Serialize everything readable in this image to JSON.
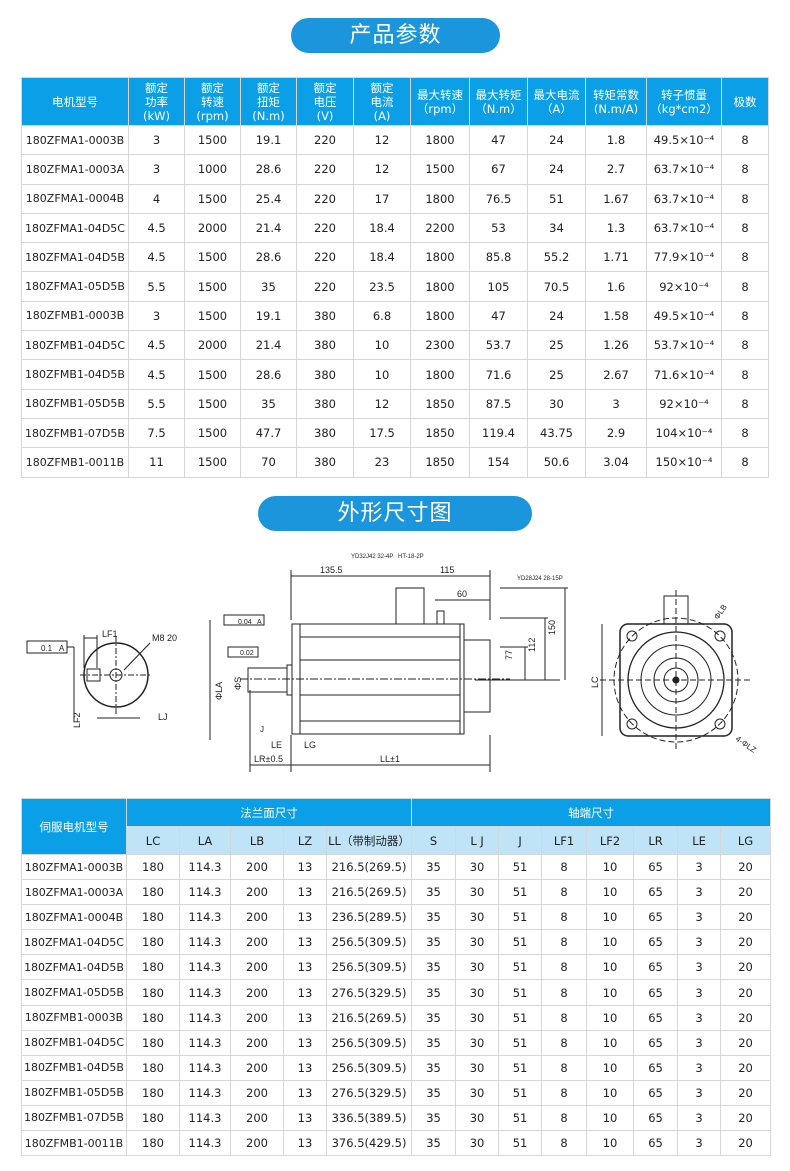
{
  "section1_title": "产品参数",
  "section2_title": "外形尺寸图",
  "colors": {
    "header": "#0a9fe6",
    "subheader": "#bfe3f7",
    "pill": "#1b96dd"
  },
  "params_table": {
    "headers": [
      "电机型号",
      "额定\n功率\n(kW)",
      "额定\n转速\n(rpm)",
      "额定\n扭矩\n(N.m)",
      "额定\n电压\n(V)",
      "额定\n电流\n(A)",
      "最大转速\n（rpm）",
      "最大转矩\n（N.m）",
      "最大电流\n（A）",
      "转矩常数\n(N.m/A)",
      "转子惯量\n（kg*cm2）",
      "极数"
    ],
    "rows": [
      [
        "180ZFMA1-0003B",
        "3",
        "1500",
        "19.1",
        "220",
        "12",
        "1800",
        "47",
        "24",
        "1.8",
        "49.5×10⁻⁴",
        "8"
      ],
      [
        "180ZFMA1-0003A",
        "3",
        "1000",
        "28.6",
        "220",
        "12",
        "1500",
        "67",
        "24",
        "2.7",
        "63.7×10⁻⁴",
        "8"
      ],
      [
        "180ZFMA1-0004B",
        "4",
        "1500",
        "25.4",
        "220",
        "17",
        "1800",
        "76.5",
        "51",
        "1.67",
        "63.7×10⁻⁴",
        "8"
      ],
      [
        "180ZFMA1-04D5C",
        "4.5",
        "2000",
        "21.4",
        "220",
        "18.4",
        "2200",
        "53",
        "34",
        "1.3",
        "63.7×10⁻⁴",
        "8"
      ],
      [
        "180ZFMA1-04D5B",
        "4.5",
        "1500",
        "28.6",
        "220",
        "18.4",
        "1800",
        "85.8",
        "55.2",
        "1.71",
        "77.9×10⁻⁴",
        "8"
      ],
      [
        "180ZFMA1-05D5B",
        "5.5",
        "1500",
        "35",
        "220",
        "23.5",
        "1800",
        "105",
        "70.5",
        "1.6",
        "92×10⁻⁴",
        "8"
      ],
      [
        "180ZFMB1-0003B",
        "3",
        "1500",
        "19.1",
        "380",
        "6.8",
        "1800",
        "47",
        "24",
        "1.58",
        "49.5×10⁻⁴",
        "8"
      ],
      [
        "180ZFMB1-04D5C",
        "4.5",
        "2000",
        "21.4",
        "380",
        "10",
        "2300",
        "53.7",
        "25",
        "1.26",
        "53.7×10⁻⁴",
        "8"
      ],
      [
        "180ZFMB1-04D5B",
        "4.5",
        "1500",
        "28.6",
        "380",
        "10",
        "1800",
        "71.6",
        "25",
        "2.67",
        "71.6×10⁻⁴",
        "8"
      ],
      [
        "180ZFMB1-05D5B",
        "5.5",
        "1500",
        "35",
        "380",
        "12",
        "1850",
        "87.5",
        "30",
        "3",
        "92×10⁻⁴",
        "8"
      ],
      [
        "180ZFMB1-07D5B",
        "7.5",
        "1500",
        "47.7",
        "380",
        "17.5",
        "1850",
        "119.4",
        "43.75",
        "2.9",
        "104×10⁻⁴",
        "8"
      ],
      [
        "180ZFMB1-0011B",
        "11",
        "1500",
        "70",
        "380",
        "23",
        "1850",
        "154",
        "50.6",
        "3.04",
        "150×10⁻⁴",
        "8"
      ]
    ]
  },
  "drawing": {
    "side_flatness": "0.1",
    "side_datum": "A",
    "side_lf1": "LF1",
    "side_m8": "M8 20",
    "side_lf2": "LF2",
    "side_lj": "LJ",
    "conn1": "YD32J42 32-4P",
    "conn2": "HT-18-2P",
    "conn3": "YD28J24 28-15P",
    "dim_1355": "135.5",
    "dim_115": "115",
    "dim_60": "60",
    "dim_150": "150",
    "dim_112": "112",
    "dim_77": "77",
    "tol_coax": "0.04",
    "tol_datum": "A",
    "tol_runout": "0.02",
    "la": "ΦLA",
    "s": "ΦS",
    "j": "J",
    "le": "LE",
    "lg": "LG",
    "lr": "LR±0.5",
    "ll": "LL±1",
    "lc": "LC",
    "lb": "ΦLB",
    "lz": "4-ΦLZ"
  },
  "dims_table": {
    "model_header": "伺服电机型号",
    "group1": "法兰面尺寸",
    "group2": "轴端尺寸",
    "subheaders": [
      "LC",
      "LA",
      "LB",
      "LZ",
      "LL（带制动器）",
      "S",
      "L J",
      "J",
      "LF1",
      "LF2",
      "LR",
      "LE",
      "LG"
    ],
    "rows": [
      [
        "180ZFMA1-0003B",
        "180",
        "114.3",
        "200",
        "13",
        "216.5(269.5)",
        "35",
        "30",
        "51",
        "8",
        "10",
        "65",
        "3",
        "20"
      ],
      [
        "180ZFMA1-0003A",
        "180",
        "114.3",
        "200",
        "13",
        "216.5(269.5)",
        "35",
        "30",
        "51",
        "8",
        "10",
        "65",
        "3",
        "20"
      ],
      [
        "180ZFMA1-0004B",
        "180",
        "114.3",
        "200",
        "13",
        "236.5(289.5)",
        "35",
        "30",
        "51",
        "8",
        "10",
        "65",
        "3",
        "20"
      ],
      [
        "180ZFMA1-04D5C",
        "180",
        "114.3",
        "200",
        "13",
        "256.5(309.5)",
        "35",
        "30",
        "51",
        "8",
        "10",
        "65",
        "3",
        "20"
      ],
      [
        "180ZFMA1-04D5B",
        "180",
        "114.3",
        "200",
        "13",
        "256.5(309.5)",
        "35",
        "30",
        "51",
        "8",
        "10",
        "65",
        "3",
        "20"
      ],
      [
        "180ZFMA1-05D5B",
        "180",
        "114.3",
        "200",
        "13",
        "276.5(329.5)",
        "35",
        "30",
        "51",
        "8",
        "10",
        "65",
        "3",
        "20"
      ],
      [
        "180ZFMB1-0003B",
        "180",
        "114.3",
        "200",
        "13",
        "216.5(269.5)",
        "35",
        "30",
        "51",
        "8",
        "10",
        "65",
        "3",
        "20"
      ],
      [
        "180ZFMB1-04D5C",
        "180",
        "114.3",
        "200",
        "13",
        "256.5(309.5)",
        "35",
        "30",
        "51",
        "8",
        "10",
        "65",
        "3",
        "20"
      ],
      [
        "180ZFMB1-04D5B",
        "180",
        "114.3",
        "200",
        "13",
        "256.5(309.5)",
        "35",
        "30",
        "51",
        "8",
        "10",
        "65",
        "3",
        "20"
      ],
      [
        "180ZFMB1-05D5B",
        "180",
        "114.3",
        "200",
        "13",
        "276.5(329.5)",
        "35",
        "30",
        "51",
        "8",
        "10",
        "65",
        "3",
        "20"
      ],
      [
        "180ZFMB1-07D5B",
        "180",
        "114.3",
        "200",
        "13",
        "336.5(389.5)",
        "35",
        "30",
        "51",
        "8",
        "10",
        "65",
        "3",
        "20"
      ],
      [
        "180ZFMB1-0011B",
        "180",
        "114.3",
        "200",
        "13",
        "376.5(429.5)",
        "35",
        "30",
        "51",
        "8",
        "10",
        "65",
        "3",
        "20"
      ]
    ]
  }
}
